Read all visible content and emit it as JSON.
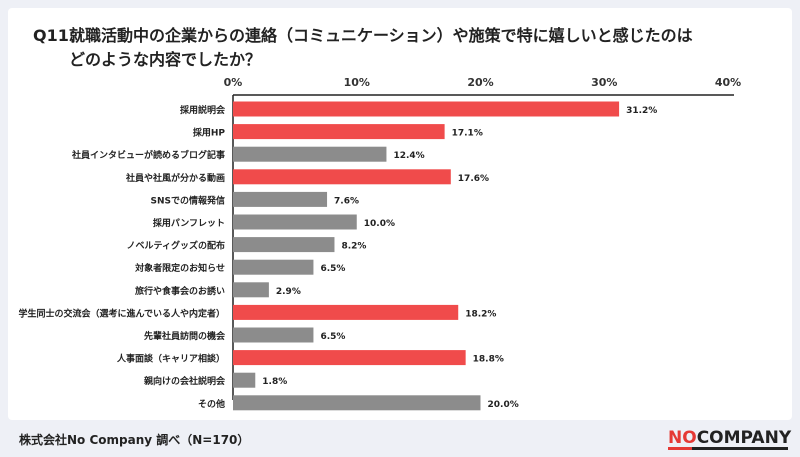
{
  "header": {
    "question_label": "Q11：",
    "question_line1": "就職活動中の企業からの連絡（コミュニケーション）や施策で特に嬉しいと感じたのは",
    "question_line2": "どのような内容でしたか？"
  },
  "footer": {
    "source": "株式会社No Company 調べ（N=170）",
    "logo_no": "NO",
    "logo_rest": "COMPANY"
  },
  "colors": {
    "highlight": "#f04b4b",
    "normal": "#8c8c8c",
    "logo_red": "#e53935"
  },
  "chart_data": {
    "type": "bar",
    "orientation": "horizontal",
    "x_ticks": [
      "0%",
      "10%",
      "20%",
      "30%",
      "40%"
    ],
    "xlim": [
      0,
      40
    ],
    "categories": [
      "採用説明会",
      "採用HP",
      "社員インタビューが読めるブログ記事",
      "社員や社風が分かる動画",
      "SNSでの情報発信",
      "採用パンフレット",
      "ノベルティグッズの配布",
      "対象者限定のお知らせ",
      "旅行や食事会のお誘い",
      "学生同士の交流会（選考に進んでいる人や内定者）",
      "先輩社員訪問の機会",
      "人事面談（キャリア相談）",
      "親向けの会社説明会",
      "その他"
    ],
    "values": [
      31.2,
      17.1,
      12.4,
      17.6,
      7.6,
      10.0,
      8.2,
      6.5,
      2.9,
      18.2,
      6.5,
      18.8,
      1.8,
      20.0
    ],
    "value_labels": [
      "31.2%",
      "17.1%",
      "12.4%",
      "17.6%",
      "7.6%",
      "10.0%",
      "8.2%",
      "6.5%",
      "2.9%",
      "18.2%",
      "6.5%",
      "18.8%",
      "1.8%",
      "20.0%"
    ],
    "highlighted": [
      true,
      true,
      false,
      true,
      false,
      false,
      false,
      false,
      false,
      true,
      false,
      true,
      false,
      false
    ]
  }
}
